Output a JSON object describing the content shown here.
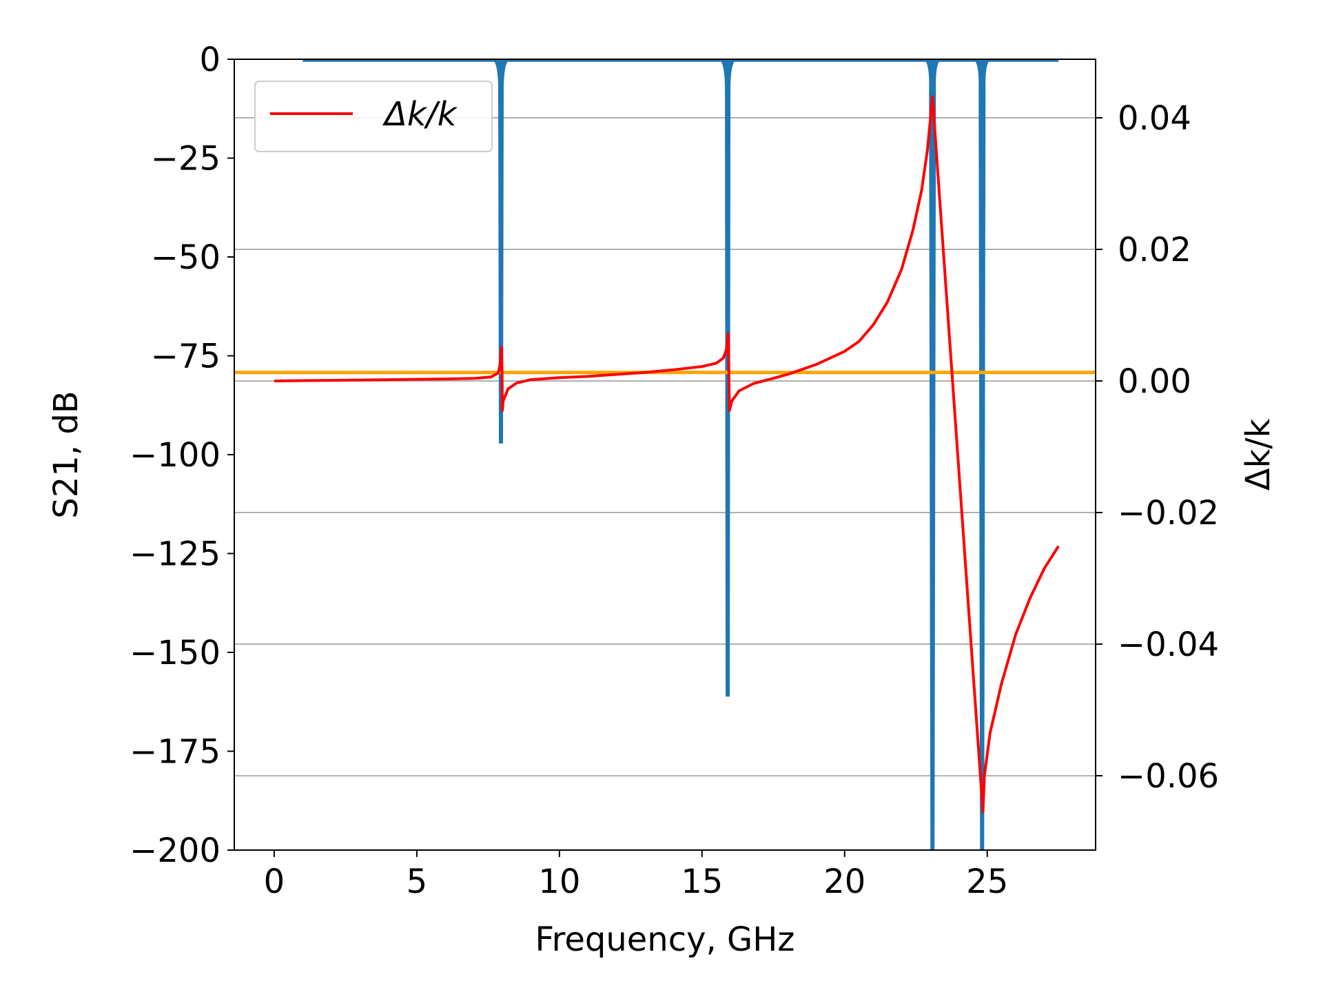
{
  "chart_data": {
    "type": "line",
    "title": "",
    "xlabel": "Frequency, GHz",
    "ylabel_left": "S21, dB",
    "ylabel_right": "Δk/k",
    "xlim": [
      -1.4,
      28.8
    ],
    "ylim_left": [
      -200,
      0
    ],
    "ylim_right": [
      -0.0713,
      0.0489
    ],
    "x_ticks": [
      0,
      5,
      10,
      15,
      20,
      25
    ],
    "x_tick_labels": [
      "0",
      "5",
      "10",
      "15",
      "20",
      "25"
    ],
    "y_left_ticks": [
      0,
      -25,
      -50,
      -75,
      -100,
      -125,
      -150,
      -175,
      -200
    ],
    "y_left_tick_labels": [
      "0",
      "−25",
      "−50",
      "−75",
      "−100",
      "−125",
      "−150",
      "−175",
      "−200"
    ],
    "y_right_ticks": [
      0.04,
      0.02,
      0.0,
      -0.02,
      -0.04,
      -0.06
    ],
    "y_right_tick_labels": [
      "0.04",
      "0.02",
      "0.00",
      "−0.02",
      "−0.04",
      "−0.06"
    ],
    "grid": "horizontal-right-axis",
    "legend": {
      "placement": "top-left",
      "entries": [
        "Δk/k"
      ]
    },
    "colors": {
      "s21": "#1f77b4",
      "dk": "#ff0000",
      "ref": "#ffa500",
      "grid": "#b0b0b0"
    },
    "reference_line": {
      "axis": "right",
      "value": 0.0013
    },
    "series": [
      {
        "axis": "left",
        "baseline": [
          [
            1.0,
            -0.3
          ],
          [
            27.5,
            -0.3
          ]
        ],
        "notches": [
          {
            "f": 7.95,
            "depth": -97
          },
          {
            "f": 15.9,
            "depth": -161
          },
          {
            "f": 23.08,
            "depth": -200
          },
          {
            "f": 24.82,
            "depth": -200
          }
        ]
      },
      {
        "name": "Δk/k",
        "axis": "right",
        "points": [
          [
            0.0,
            0.0
          ],
          [
            1,
            5e-05
          ],
          [
            2,
            0.0001
          ],
          [
            3,
            0.00015
          ],
          [
            4,
            0.0002
          ],
          [
            5,
            0.00025
          ],
          [
            6,
            0.0003
          ],
          [
            7,
            0.0004
          ],
          [
            7.6,
            0.0006
          ],
          [
            7.85,
            0.0012
          ],
          [
            7.92,
            0.0025
          ],
          [
            7.97,
            0.0051
          ],
          [
            7.99,
            0.001
          ],
          [
            8.0,
            -0.0045
          ],
          [
            8.03,
            -0.003
          ],
          [
            8.2,
            -0.0012
          ],
          [
            8.5,
            -0.0003
          ],
          [
            9,
            0.0002
          ],
          [
            10,
            0.0005
          ],
          [
            11,
            0.0007
          ],
          [
            12,
            0.001
          ],
          [
            13,
            0.0013
          ],
          [
            14,
            0.0017
          ],
          [
            15,
            0.0022
          ],
          [
            15.5,
            0.0027
          ],
          [
            15.75,
            0.0035
          ],
          [
            15.85,
            0.0047
          ],
          [
            15.92,
            0.0072
          ],
          [
            15.94,
            0.002
          ],
          [
            15.96,
            -0.0045
          ],
          [
            16.05,
            -0.003
          ],
          [
            16.3,
            -0.0015
          ],
          [
            16.8,
            -0.0004
          ],
          [
            17.5,
            0.0004
          ],
          [
            18,
            0.001
          ],
          [
            19,
            0.0025
          ],
          [
            20,
            0.0045
          ],
          [
            20.5,
            0.006
          ],
          [
            21,
            0.0085
          ],
          [
            21.5,
            0.012
          ],
          [
            22,
            0.017
          ],
          [
            22.4,
            0.023
          ],
          [
            22.7,
            0.029
          ],
          [
            22.9,
            0.035
          ],
          [
            23.0,
            0.0395
          ],
          [
            23.08,
            0.0432
          ],
          [
            24.85,
            -0.0655
          ],
          [
            24.9,
            -0.06
          ],
          [
            25.1,
            -0.0535
          ],
          [
            25.5,
            -0.046
          ],
          [
            26,
            -0.0385
          ],
          [
            26.5,
            -0.033
          ],
          [
            27,
            -0.0285
          ],
          [
            27.5,
            -0.0251
          ]
        ]
      }
    ]
  }
}
